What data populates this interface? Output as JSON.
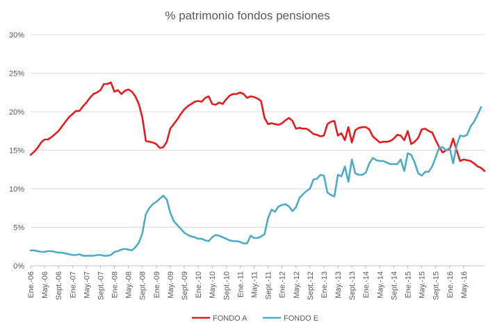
{
  "chart_data": {
    "type": "line",
    "title": "% patrimonio fondos pensiones",
    "xlabel": "",
    "ylabel": "",
    "ylim": [
      0,
      30
    ],
    "y_ticks": [
      "0%",
      "5%",
      "10%",
      "15%",
      "20%",
      "25%",
      "30%"
    ],
    "x_tick_labels": [
      "Ene.-06",
      "May.-06",
      "Sept.-06",
      "Ene.-07",
      "May.-07",
      "Sept.-07",
      "Ene.-08",
      "May.-08",
      "Sept.-08",
      "Ene.-09",
      "May.-09",
      "Sept.-09",
      "Ene.-10",
      "May.-10",
      "Sept.-10",
      "Ene.-11",
      "May.-11",
      "Sept.-11",
      "Ene.-12",
      "May.-12",
      "Sept.-12",
      "Ene.-13",
      "May.-13",
      "Sept.-13",
      "Ene.-14",
      "May.-14",
      "Sept.-14",
      "Ene.-15",
      "May.-15",
      "Sept.-15",
      "Ene.-16",
      "May.-16"
    ],
    "x_start": "Ene.-06",
    "grid": true,
    "legend_position": "bottom",
    "colors": {
      "FONDO A": "#e8191c",
      "FONDO E": "#4bacc6",
      "grid": "#d9d9d9"
    },
    "series": [
      {
        "name": "FONDO A",
        "values": [
          14.4,
          14.8,
          15.3,
          16.0,
          16.4,
          16.4,
          16.7,
          17.1,
          17.5,
          18.1,
          18.7,
          19.3,
          19.7,
          20.1,
          20.1,
          20.7,
          21.2,
          21.8,
          22.3,
          22.5,
          22.8,
          23.6,
          23.6,
          23.8,
          22.6,
          22.8,
          22.3,
          22.7,
          22.9,
          22.6,
          22.0,
          21.0,
          19.3,
          16.2,
          16.1,
          16.0,
          15.8,
          15.3,
          15.4,
          16.1,
          17.8,
          18.4,
          19.0,
          19.7,
          20.3,
          20.7,
          21.0,
          21.3,
          21.4,
          21.3,
          21.8,
          22.0,
          21.0,
          20.9,
          21.2,
          21.0,
          21.6,
          22.1,
          22.3,
          22.3,
          22.5,
          22.3,
          21.8,
          22.0,
          21.9,
          21.7,
          21.4,
          19.2,
          18.4,
          18.5,
          18.4,
          18.3,
          18.5,
          18.9,
          19.2,
          18.8,
          17.8,
          17.9,
          17.8,
          17.8,
          17.5,
          17.1,
          17.0,
          16.8,
          16.9,
          18.4,
          18.7,
          18.8,
          16.9,
          17.2,
          16.3,
          18.0,
          16.0,
          17.6,
          17.9,
          18.0,
          18.0,
          17.7,
          16.8,
          16.4,
          16.0,
          16.1,
          16.1,
          16.2,
          16.5,
          17.0,
          16.9,
          16.3,
          17.5,
          15.8,
          16.1,
          16.6,
          17.7,
          17.8,
          17.5,
          17.3,
          16.3,
          15.4,
          14.7,
          15.0,
          15.1,
          16.5,
          15.0,
          13.6,
          13.8,
          13.7,
          13.6,
          13.3,
          12.9,
          12.7,
          12.3
        ]
      },
      {
        "name": "FONDO E",
        "values": [
          2.0,
          2.0,
          1.9,
          1.8,
          1.8,
          1.9,
          1.9,
          1.8,
          1.7,
          1.7,
          1.6,
          1.5,
          1.4,
          1.4,
          1.5,
          1.3,
          1.3,
          1.3,
          1.3,
          1.4,
          1.4,
          1.3,
          1.3,
          1.4,
          1.8,
          1.9,
          2.1,
          2.2,
          2.1,
          2.0,
          2.4,
          3.0,
          4.2,
          6.7,
          7.5,
          8.0,
          8.3,
          8.7,
          9.1,
          8.6,
          6.9,
          5.8,
          5.3,
          4.8,
          4.3,
          4.0,
          3.8,
          3.7,
          3.5,
          3.5,
          3.3,
          3.2,
          3.7,
          4.0,
          3.9,
          3.7,
          3.5,
          3.3,
          3.2,
          3.2,
          3.1,
          2.9,
          2.9,
          3.9,
          3.6,
          3.6,
          3.8,
          4.1,
          6.2,
          7.3,
          7.0,
          7.7,
          7.9,
          8.0,
          7.7,
          7.1,
          7.6,
          8.8,
          9.3,
          9.7,
          10.0,
          11.2,
          11.3,
          11.8,
          11.7,
          9.5,
          9.2,
          9.0,
          11.8,
          11.6,
          12.9,
          10.9,
          13.8,
          12.0,
          11.8,
          11.8,
          12.1,
          13.3,
          14.0,
          13.7,
          13.6,
          13.6,
          13.4,
          13.2,
          13.2,
          13.2,
          13.8,
          12.3,
          14.6,
          14.4,
          13.4,
          12.0,
          11.7,
          12.2,
          12.2,
          12.9,
          14.1,
          15.3,
          15.4,
          15.0,
          15.3,
          13.3,
          15.6,
          16.9,
          16.8,
          17.0,
          18.1,
          18.7,
          19.6,
          20.6
        ]
      }
    ]
  }
}
